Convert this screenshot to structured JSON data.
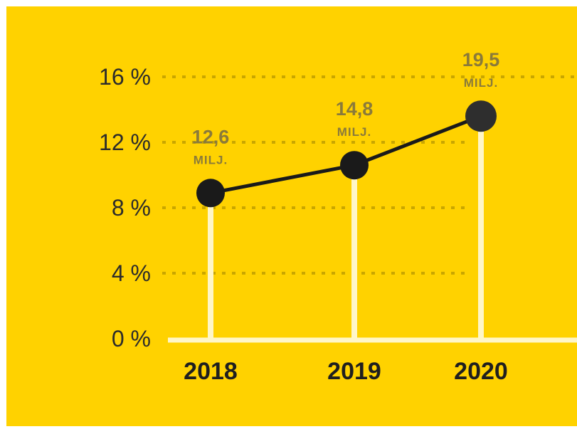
{
  "chart_data": {
    "type": "line",
    "x": [
      "2018",
      "2019",
      "2020"
    ],
    "y_ticks": [
      "0 %",
      "4 %",
      "8 %",
      "12 %",
      "16 %"
    ],
    "ylim": [
      0,
      16
    ],
    "series": [
      {
        "values": [
          8.9,
          10.6,
          13.6
        ],
        "data_labels": [
          "12,6",
          "14,8",
          "19,5"
        ],
        "data_label_unit": "MILJ."
      }
    ],
    "grid": true,
    "legend": "none"
  },
  "colors": {
    "background": "#FFD200",
    "line": "#1a1a1a",
    "marker": "#1a1a1a",
    "stem": "#FFF6C8",
    "grid": "#C9A600",
    "axis": "#FFF6C8"
  }
}
